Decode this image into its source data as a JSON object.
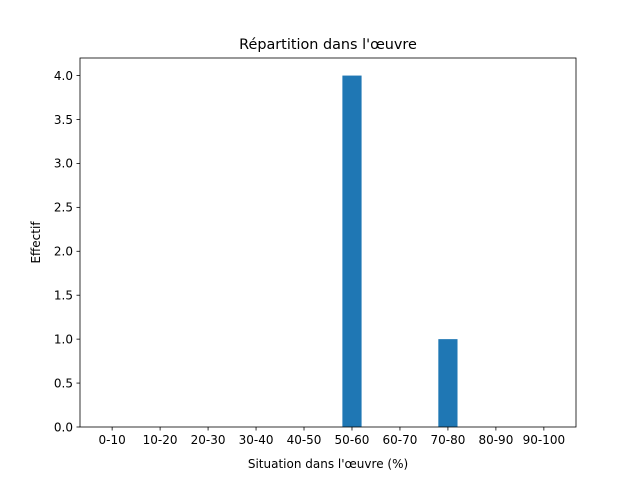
{
  "chart_data": {
    "type": "bar",
    "title": "Répartition dans l'œuvre",
    "xlabel": "Situation dans l'œuvre (%)",
    "ylabel": "Effectif",
    "categories": [
      "0-10",
      "10-20",
      "20-30",
      "30-40",
      "40-50",
      "50-60",
      "60-70",
      "70-80",
      "80-90",
      "90-100"
    ],
    "values": [
      0,
      0,
      0,
      0,
      0,
      4,
      0,
      1,
      0,
      0
    ],
    "ylim": [
      0,
      4.2
    ],
    "yticks": [
      "0.0",
      "0.5",
      "1.0",
      "1.5",
      "2.0",
      "2.5",
      "3.0",
      "3.5",
      "4.0"
    ],
    "bar_color": "#1f77b4",
    "grid": false
  }
}
